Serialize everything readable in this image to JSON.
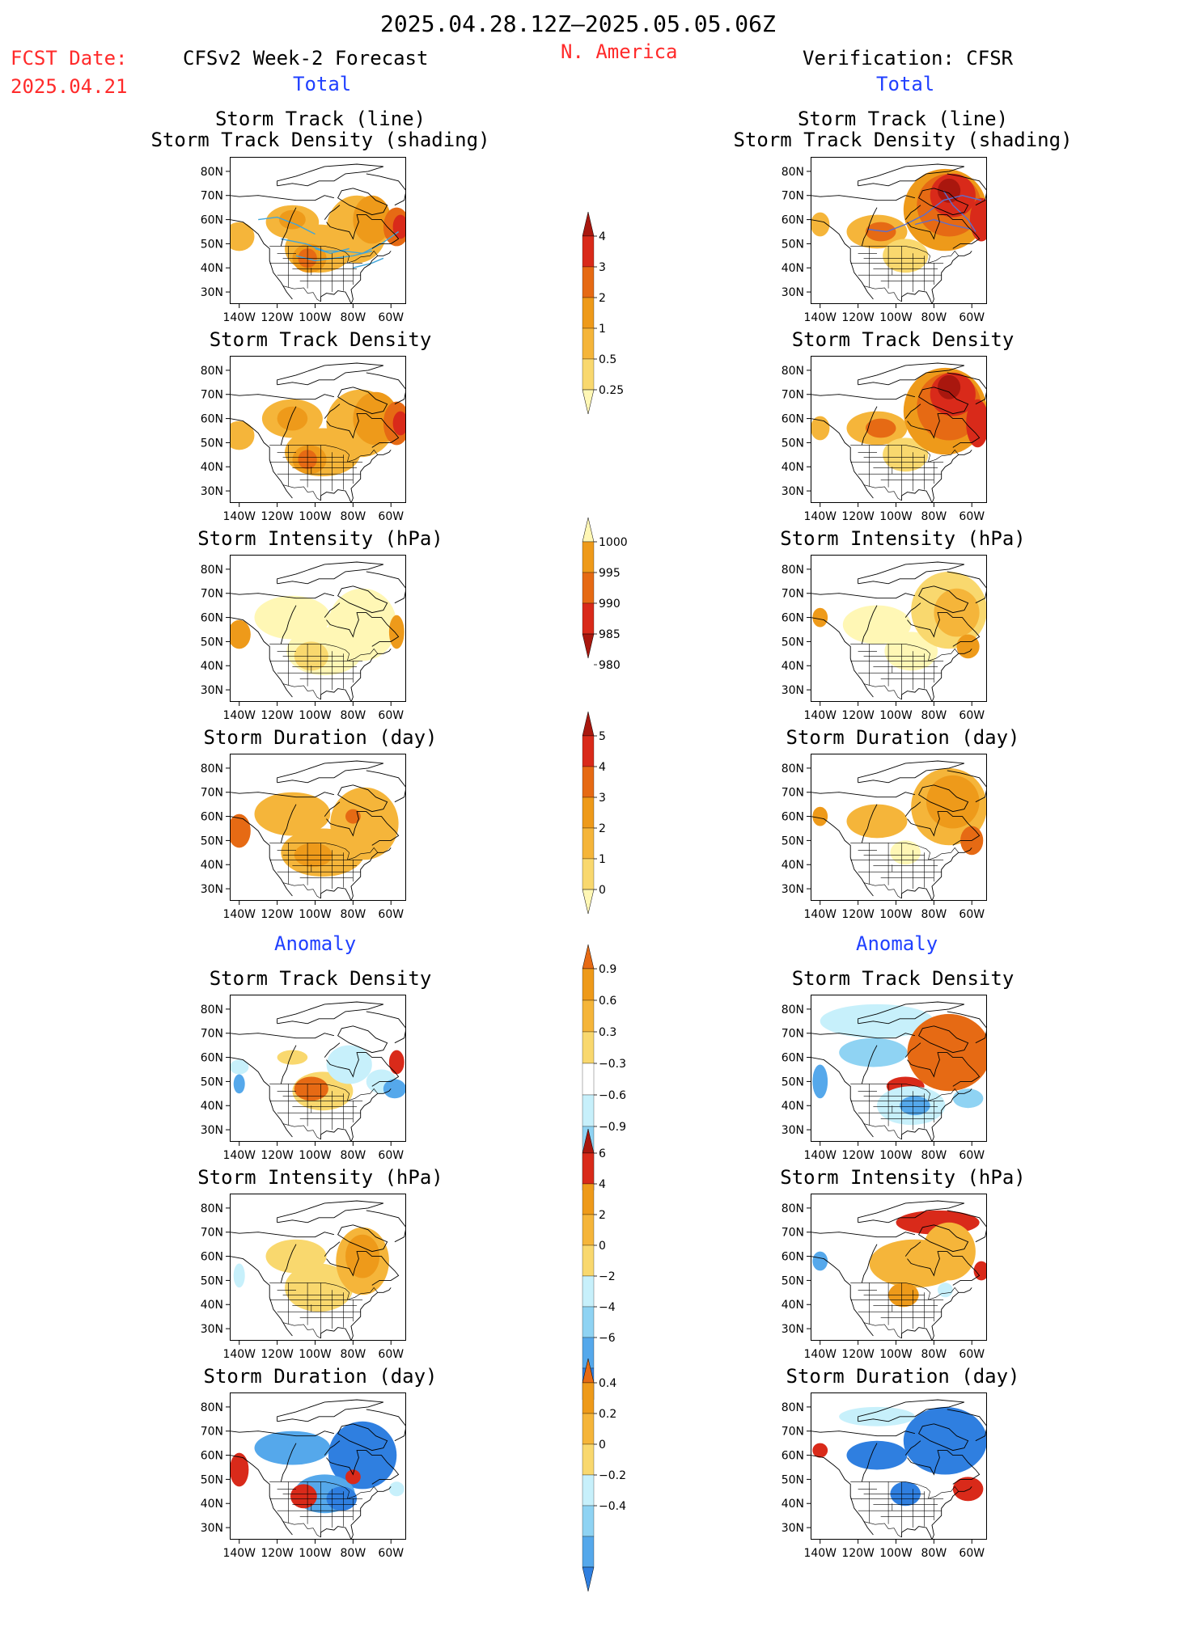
{
  "header": {
    "period": "2025.04.28.12Z–2025.05.05.06Z",
    "fcst_label": "FCST Date:",
    "fcst_date": "2025.04.21",
    "left_title": "CFSv2 Week-2 Forecast",
    "region": "N. America",
    "right_title": "Verification: CFSR",
    "left_total": "Total",
    "right_total": "Total",
    "left_anomaly": "Anomaly",
    "right_anomaly": "Anomaly"
  },
  "axes": {
    "lat_labels": [
      "80N",
      "70N",
      "60N",
      "50N",
      "40N",
      "30N"
    ],
    "lon_labels": [
      "140W",
      "120W",
      "100W",
      "80W",
      "60W"
    ]
  },
  "panel_titles": {
    "track_line": "Storm Track (line)",
    "track_shading": "Storm Track Density (shading)",
    "density": "Storm Track Density",
    "intensity": "Storm Intensity (hPa)",
    "duration": "Storm Duration (day)"
  },
  "colors": {
    "lightyellow": "#fff7b5",
    "yellow": "#f9d86e",
    "lightorange": "#f5b53a",
    "orange": "#ee9a1a",
    "darkorange": "#e66a14",
    "red": "#d92a1a",
    "darkred": "#a9170e",
    "lightblue": "#c7f0fb",
    "blue2": "#8fd3f3",
    "blue3": "#55a8eb",
    "blue4": "#2f7fe0",
    "trackline_forecast": "#41a5d9",
    "trackline_verif": "#5b6fd1"
  },
  "chart_data": {
    "type": "heatmap",
    "colorbars": [
      {
        "name": "Storm Track Density",
        "labels": [
          "4",
          "3",
          "2",
          "1",
          "0.5",
          "0.25"
        ]
      },
      {
        "name": "Storm Intensity",
        "labels": [
          "1000",
          "995",
          "990",
          "985",
          "980"
        ]
      },
      {
        "name": "Storm Duration",
        "labels": [
          "5",
          "4",
          "3",
          "2",
          "1",
          "0"
        ]
      },
      {
        "name": "Storm Track Density Anomaly",
        "labels": [
          "0.9",
          "0.6",
          "0.3",
          "−0.3",
          "−0.6",
          "−0.9"
        ]
      },
      {
        "name": "Storm Intensity Anomaly",
        "labels": [
          "6",
          "4",
          "2",
          "0",
          "−2",
          "−4",
          "−6"
        ]
      },
      {
        "name": "Storm Duration Anomaly",
        "labels": [
          "0.4",
          "0.2",
          "0",
          "−0.2",
          "−0.4"
        ]
      }
    ],
    "panels": [
      {
        "id": "f-track",
        "source": "CFSv2 Week-2 Forecast",
        "field": "Storm Track Density",
        "lines": true,
        "blobs": [
          {
            "lon": -140,
            "lat": 53,
            "rx": 8,
            "ry": 6,
            "c": "lightorange"
          },
          {
            "lon": -112,
            "lat": 59,
            "rx": 14,
            "ry": 7,
            "c": "lightorange"
          },
          {
            "lon": -112,
            "lat": 60,
            "rx": 7,
            "ry": 4,
            "c": "orange"
          },
          {
            "lon": -98,
            "lat": 48,
            "rx": 18,
            "ry": 10,
            "c": "lightorange"
          },
          {
            "lon": -103,
            "lat": 44,
            "rx": 9,
            "ry": 6,
            "c": "orange"
          },
          {
            "lon": -104,
            "lat": 44,
            "rx": 5,
            "ry": 4,
            "c": "darkorange"
          },
          {
            "lon": -78,
            "lat": 56,
            "rx": 16,
            "ry": 14,
            "c": "lightorange"
          },
          {
            "lon": -70,
            "lat": 60,
            "rx": 10,
            "ry": 10,
            "c": "orange"
          },
          {
            "lon": -57,
            "lat": 57,
            "rx": 7,
            "ry": 8,
            "c": "darkorange"
          },
          {
            "lon": -55,
            "lat": 57,
            "rx": 4,
            "ry": 5,
            "c": "red"
          }
        ]
      },
      {
        "id": "f-density",
        "source": "CFSv2 Week-2 Forecast",
        "field": "Storm Track Density",
        "lines": false,
        "blobs": [
          {
            "lon": -140,
            "lat": 53,
            "rx": 8,
            "ry": 6,
            "c": "lightorange"
          },
          {
            "lon": -112,
            "lat": 60,
            "rx": 16,
            "ry": 8,
            "c": "lightorange"
          },
          {
            "lon": -112,
            "lat": 60,
            "rx": 8,
            "ry": 5,
            "c": "orange"
          },
          {
            "lon": -96,
            "lat": 46,
            "rx": 20,
            "ry": 10,
            "c": "lightorange"
          },
          {
            "lon": -103,
            "lat": 43,
            "rx": 9,
            "ry": 6,
            "c": "orange"
          },
          {
            "lon": -104,
            "lat": 43,
            "rx": 5,
            "ry": 4,
            "c": "darkorange"
          },
          {
            "lon": -76,
            "lat": 58,
            "rx": 18,
            "ry": 14,
            "c": "lightorange"
          },
          {
            "lon": -68,
            "lat": 60,
            "rx": 12,
            "ry": 11,
            "c": "orange"
          },
          {
            "lon": -57,
            "lat": 58,
            "rx": 7,
            "ry": 9,
            "c": "darkorange"
          },
          {
            "lon": -55,
            "lat": 58,
            "rx": 4,
            "ry": 5,
            "c": "red"
          }
        ]
      },
      {
        "id": "f-intensity",
        "source": "CFSv2 Week-2 Forecast",
        "field": "Storm Intensity",
        "lines": false,
        "blobs": [
          {
            "lon": -112,
            "lat": 60,
            "rx": 20,
            "ry": 9,
            "c": "lightyellow"
          },
          {
            "lon": -95,
            "lat": 46,
            "rx": 20,
            "ry": 10,
            "c": "lightyellow"
          },
          {
            "lon": -75,
            "lat": 57,
            "rx": 18,
            "ry": 15,
            "c": "lightyellow"
          },
          {
            "lon": -102,
            "lat": 44,
            "rx": 9,
            "ry": 6,
            "c": "yellow"
          },
          {
            "lon": -140,
            "lat": 53,
            "rx": 6,
            "ry": 6,
            "c": "orange"
          },
          {
            "lon": -57,
            "lat": 54,
            "rx": 4,
            "ry": 7,
            "c": "orange"
          }
        ]
      },
      {
        "id": "f-duration",
        "source": "CFSv2 Week-2 Forecast",
        "field": "Storm Duration",
        "lines": false,
        "blobs": [
          {
            "lon": -112,
            "lat": 61,
            "rx": 20,
            "ry": 9,
            "c": "lightorange"
          },
          {
            "lon": -96,
            "lat": 45,
            "rx": 22,
            "ry": 10,
            "c": "lightorange"
          },
          {
            "lon": -74,
            "lat": 57,
            "rx": 18,
            "ry": 15,
            "c": "lightorange"
          },
          {
            "lon": -101,
            "lat": 44,
            "rx": 10,
            "ry": 5,
            "c": "orange"
          },
          {
            "lon": -140,
            "lat": 54,
            "rx": 6,
            "ry": 7,
            "c": "darkorange"
          },
          {
            "lon": -80,
            "lat": 60,
            "rx": 4,
            "ry": 3,
            "c": "darkorange"
          }
        ]
      },
      {
        "id": "f-a-density",
        "source": "CFSv2 Week-2 Forecast",
        "field": "Storm Track Density Anomaly",
        "lines": false,
        "blobs": [
          {
            "lon": -140,
            "lat": 49,
            "rx": 3,
            "ry": 4,
            "c": "blue3"
          },
          {
            "lon": -140,
            "lat": 56,
            "rx": 5,
            "ry": 3,
            "c": "lightblue"
          },
          {
            "lon": -112,
            "lat": 60,
            "rx": 8,
            "ry": 3,
            "c": "yellow"
          },
          {
            "lon": -96,
            "lat": 46,
            "rx": 16,
            "ry": 8,
            "c": "yellow"
          },
          {
            "lon": -102,
            "lat": 47,
            "rx": 9,
            "ry": 5,
            "c": "darkorange"
          },
          {
            "lon": -82,
            "lat": 57,
            "rx": 12,
            "ry": 8,
            "c": "lightblue"
          },
          {
            "lon": -65,
            "lat": 50,
            "rx": 8,
            "ry": 5,
            "c": "lightblue"
          },
          {
            "lon": -58,
            "lat": 47,
            "rx": 6,
            "ry": 4,
            "c": "blue3"
          },
          {
            "lon": -57,
            "lat": 58,
            "rx": 4,
            "ry": 5,
            "c": "red"
          }
        ]
      },
      {
        "id": "f-a-intensity",
        "source": "CFSv2 Week-2 Forecast",
        "field": "Storm Intensity Anomaly",
        "lines": false,
        "blobs": [
          {
            "lon": -110,
            "lat": 60,
            "rx": 16,
            "ry": 7,
            "c": "yellow"
          },
          {
            "lon": -98,
            "lat": 47,
            "rx": 18,
            "ry": 10,
            "c": "yellow"
          },
          {
            "lon": -75,
            "lat": 58,
            "rx": 14,
            "ry": 14,
            "c": "lightorange"
          },
          {
            "lon": -75,
            "lat": 60,
            "rx": 9,
            "ry": 9,
            "c": "orange"
          },
          {
            "lon": -140,
            "lat": 52,
            "rx": 3,
            "ry": 5,
            "c": "lightblue"
          }
        ]
      },
      {
        "id": "f-a-duration",
        "source": "CFSv2 Week-2 Forecast",
        "field": "Storm Duration Anomaly",
        "lines": false,
        "blobs": [
          {
            "lon": -112,
            "lat": 63,
            "rx": 20,
            "ry": 7,
            "c": "blue3"
          },
          {
            "lon": -75,
            "lat": 60,
            "rx": 18,
            "ry": 14,
            "c": "blue4"
          },
          {
            "lon": -95,
            "lat": 44,
            "rx": 16,
            "ry": 8,
            "c": "blue3"
          },
          {
            "lon": -86,
            "lat": 42,
            "rx": 8,
            "ry": 5,
            "c": "blue4"
          },
          {
            "lon": -106,
            "lat": 43,
            "rx": 7,
            "ry": 5,
            "c": "red"
          },
          {
            "lon": -140,
            "lat": 54,
            "rx": 5,
            "ry": 7,
            "c": "red"
          },
          {
            "lon": -80,
            "lat": 51,
            "rx": 4,
            "ry": 3,
            "c": "red"
          },
          {
            "lon": -57,
            "lat": 46,
            "rx": 4,
            "ry": 3,
            "c": "lightblue"
          }
        ]
      },
      {
        "id": "v-track",
        "source": "Verification: CFSR",
        "field": "Storm Track Density",
        "lines": true,
        "blobs": [
          {
            "lon": -140,
            "lat": 58,
            "rx": 5,
            "ry": 5,
            "c": "lightorange"
          },
          {
            "lon": -110,
            "lat": 55,
            "rx": 16,
            "ry": 7,
            "c": "lightorange"
          },
          {
            "lon": -108,
            "lat": 55,
            "rx": 8,
            "ry": 4,
            "c": "darkorange"
          },
          {
            "lon": -95,
            "lat": 45,
            "rx": 12,
            "ry": 7,
            "c": "yellow"
          },
          {
            "lon": -74,
            "lat": 64,
            "rx": 22,
            "ry": 17,
            "c": "orange"
          },
          {
            "lon": -72,
            "lat": 66,
            "rx": 17,
            "ry": 13,
            "c": "darkorange"
          },
          {
            "lon": -70,
            "lat": 70,
            "rx": 12,
            "ry": 9,
            "c": "red"
          },
          {
            "lon": -72,
            "lat": 72,
            "rx": 6,
            "ry": 5,
            "c": "darkred"
          },
          {
            "lon": -55,
            "lat": 60,
            "rx": 6,
            "ry": 9,
            "c": "red"
          }
        ]
      },
      {
        "id": "v-density",
        "source": "Verification: CFSR",
        "field": "Storm Track Density",
        "lines": false,
        "blobs": [
          {
            "lon": -140,
            "lat": 56,
            "rx": 5,
            "ry": 5,
            "c": "lightorange"
          },
          {
            "lon": -110,
            "lat": 56,
            "rx": 16,
            "ry": 7,
            "c": "lightorange"
          },
          {
            "lon": -108,
            "lat": 56,
            "rx": 8,
            "ry": 4,
            "c": "darkorange"
          },
          {
            "lon": -95,
            "lat": 45,
            "rx": 12,
            "ry": 7,
            "c": "yellow"
          },
          {
            "lon": -74,
            "lat": 63,
            "rx": 22,
            "ry": 18,
            "c": "orange"
          },
          {
            "lon": -72,
            "lat": 65,
            "rx": 17,
            "ry": 14,
            "c": "darkorange"
          },
          {
            "lon": -70,
            "lat": 70,
            "rx": 12,
            "ry": 9,
            "c": "red"
          },
          {
            "lon": -72,
            "lat": 73,
            "rx": 6,
            "ry": 5,
            "c": "darkred"
          },
          {
            "lon": -57,
            "lat": 58,
            "rx": 6,
            "ry": 10,
            "c": "red"
          }
        ]
      },
      {
        "id": "v-intensity",
        "source": "Verification: CFSR",
        "field": "Storm Intensity",
        "lines": false,
        "blobs": [
          {
            "lon": -110,
            "lat": 57,
            "rx": 18,
            "ry": 8,
            "c": "lightyellow"
          },
          {
            "lon": -92,
            "lat": 46,
            "rx": 14,
            "ry": 8,
            "c": "lightyellow"
          },
          {
            "lon": -72,
            "lat": 63,
            "rx": 20,
            "ry": 16,
            "c": "yellow"
          },
          {
            "lon": -68,
            "lat": 62,
            "rx": 12,
            "ry": 10,
            "c": "lightorange"
          },
          {
            "lon": -140,
            "lat": 60,
            "rx": 4,
            "ry": 4,
            "c": "orange"
          },
          {
            "lon": -62,
            "lat": 48,
            "rx": 6,
            "ry": 5,
            "c": "orange"
          }
        ]
      },
      {
        "id": "v-duration",
        "source": "Verification: CFSR",
        "field": "Storm Duration",
        "lines": false,
        "blobs": [
          {
            "lon": -110,
            "lat": 58,
            "rx": 16,
            "ry": 7,
            "c": "lightorange"
          },
          {
            "lon": -72,
            "lat": 64,
            "rx": 20,
            "ry": 16,
            "c": "lightorange"
          },
          {
            "lon": -70,
            "lat": 66,
            "rx": 14,
            "ry": 11,
            "c": "orange"
          },
          {
            "lon": -95,
            "lat": 45,
            "rx": 8,
            "ry": 5,
            "c": "lightyellow"
          },
          {
            "lon": -140,
            "lat": 60,
            "rx": 4,
            "ry": 4,
            "c": "orange"
          },
          {
            "lon": -60,
            "lat": 50,
            "rx": 6,
            "ry": 6,
            "c": "darkorange"
          }
        ]
      },
      {
        "id": "v-a-density",
        "source": "Verification: CFSR",
        "field": "Storm Track Density Anomaly",
        "lines": false,
        "blobs": [
          {
            "lon": -110,
            "lat": 75,
            "rx": 30,
            "ry": 7,
            "c": "lightblue"
          },
          {
            "lon": -112,
            "lat": 62,
            "rx": 18,
            "ry": 6,
            "c": "blue2"
          },
          {
            "lon": -140,
            "lat": 50,
            "rx": 4,
            "ry": 7,
            "c": "blue3"
          },
          {
            "lon": -72,
            "lat": 62,
            "rx": 22,
            "ry": 16,
            "c": "darkorange"
          },
          {
            "lon": -95,
            "lat": 48,
            "rx": 10,
            "ry": 4,
            "c": "red"
          },
          {
            "lon": -92,
            "lat": 40,
            "rx": 18,
            "ry": 8,
            "c": "lightblue"
          },
          {
            "lon": -90,
            "lat": 40,
            "rx": 8,
            "ry": 4,
            "c": "blue3"
          },
          {
            "lon": -62,
            "lat": 43,
            "rx": 8,
            "ry": 4,
            "c": "blue2"
          }
        ]
      },
      {
        "id": "v-a-intensity",
        "source": "Verification: CFSR",
        "field": "Storm Intensity Anomaly",
        "lines": false,
        "blobs": [
          {
            "lon": -140,
            "lat": 58,
            "rx": 4,
            "ry": 4,
            "c": "blue3"
          },
          {
            "lon": -90,
            "lat": 57,
            "rx": 24,
            "ry": 10,
            "c": "lightorange"
          },
          {
            "lon": -78,
            "lat": 74,
            "rx": 22,
            "ry": 5,
            "c": "red"
          },
          {
            "lon": -72,
            "lat": 62,
            "rx": 14,
            "ry": 12,
            "c": "lightorange"
          },
          {
            "lon": -96,
            "lat": 44,
            "rx": 8,
            "ry": 5,
            "c": "orange"
          },
          {
            "lon": -55,
            "lat": 54,
            "rx": 4,
            "ry": 4,
            "c": "red"
          },
          {
            "lon": -74,
            "lat": 46,
            "rx": 4,
            "ry": 3,
            "c": "lightblue"
          }
        ]
      },
      {
        "id": "v-a-duration",
        "source": "Verification: CFSR",
        "field": "Storm Duration Anomaly",
        "lines": false,
        "blobs": [
          {
            "lon": -110,
            "lat": 60,
            "rx": 16,
            "ry": 6,
            "c": "blue4"
          },
          {
            "lon": -74,
            "lat": 66,
            "rx": 22,
            "ry": 14,
            "c": "blue4"
          },
          {
            "lon": -95,
            "lat": 44,
            "rx": 8,
            "ry": 5,
            "c": "blue4"
          },
          {
            "lon": -140,
            "lat": 62,
            "rx": 4,
            "ry": 3,
            "c": "red"
          },
          {
            "lon": -62,
            "lat": 46,
            "rx": 8,
            "ry": 5,
            "c": "red"
          },
          {
            "lon": -110,
            "lat": 76,
            "rx": 20,
            "ry": 4,
            "c": "lightblue"
          }
        ]
      }
    ]
  }
}
